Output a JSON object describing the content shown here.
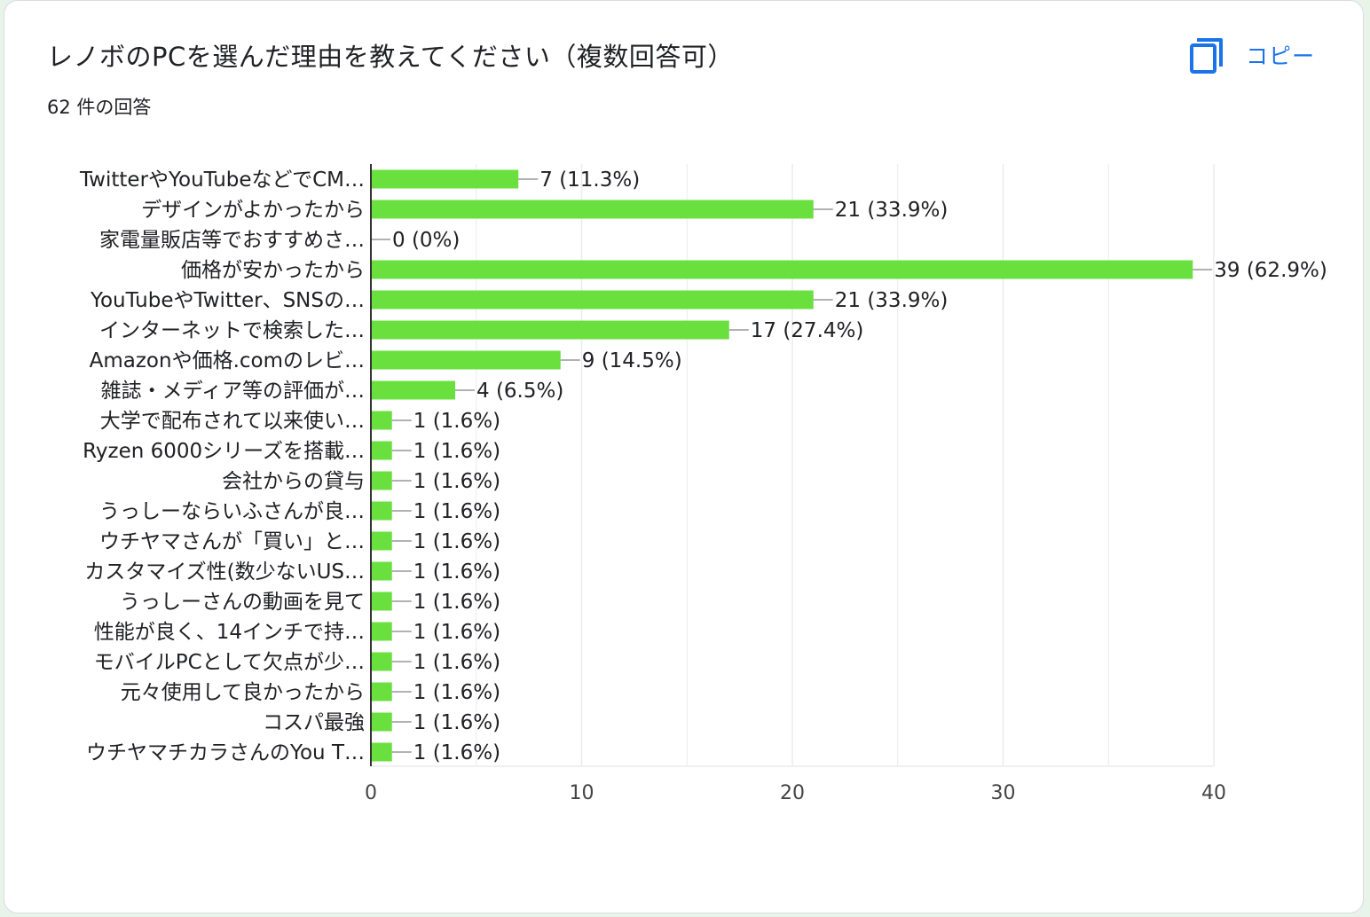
{
  "header": {
    "title": "レノボのPCを選んだ理由を教えてください（複数回答可）",
    "response_count": "62 件の回答",
    "copy_label": "コピー",
    "copy_icon": "copy-icon"
  },
  "colors": {
    "bar": "#6ae03f",
    "accent": "#1a73e8",
    "grid": "#ececec",
    "axis": "#333333",
    "text": "#202124"
  },
  "chart_data": {
    "type": "bar",
    "orientation": "horizontal",
    "title": "",
    "xlabel": "",
    "ylabel": "",
    "xlim": [
      0,
      40
    ],
    "x_ticks": [
      0,
      10,
      20,
      30,
      40
    ],
    "grid": true,
    "categories": [
      "TwitterやYouTubeなどでCM…",
      "デザインがよかったから",
      "家電量販店等でおすすめさ…",
      "価格が安かったから",
      "YouTubeやTwitter、SNSの…",
      "インターネットで検索した…",
      "Amazonや価格.comのレビ…",
      "雑誌・メディア等の評価が…",
      "大学で配布されて以来使い…",
      "Ryzen 6000シリーズを搭載…",
      "会社からの貸与",
      "うっしーならいふさんが良…",
      "ウチヤマさんが「買い」と…",
      "カスタマイズ性(数少ないUS…",
      "うっしーさんの動画を見て",
      "性能が良く、14インチで持…",
      "モバイルPCとして欠点が少…",
      "元々使用して良かったから",
      "コスパ最強",
      "ウチヤマチカラさんのYou T…"
    ],
    "values": [
      7,
      21,
      0,
      39,
      21,
      17,
      9,
      4,
      1,
      1,
      1,
      1,
      1,
      1,
      1,
      1,
      1,
      1,
      1,
      1
    ],
    "data_labels": [
      "7 (11.3%)",
      "21 (33.9%)",
      "0 (0%)",
      "39 (62.9%)",
      "21 (33.9%)",
      "17 (27.4%)",
      "9 (14.5%)",
      "4 (6.5%)",
      "1 (1.6%)",
      "1 (1.6%)",
      "1 (1.6%)",
      "1 (1.6%)",
      "1 (1.6%)",
      "1 (1.6%)",
      "1 (1.6%)",
      "1 (1.6%)",
      "1 (1.6%)",
      "1 (1.6%)",
      "1 (1.6%)",
      "1 (1.6%)"
    ]
  }
}
